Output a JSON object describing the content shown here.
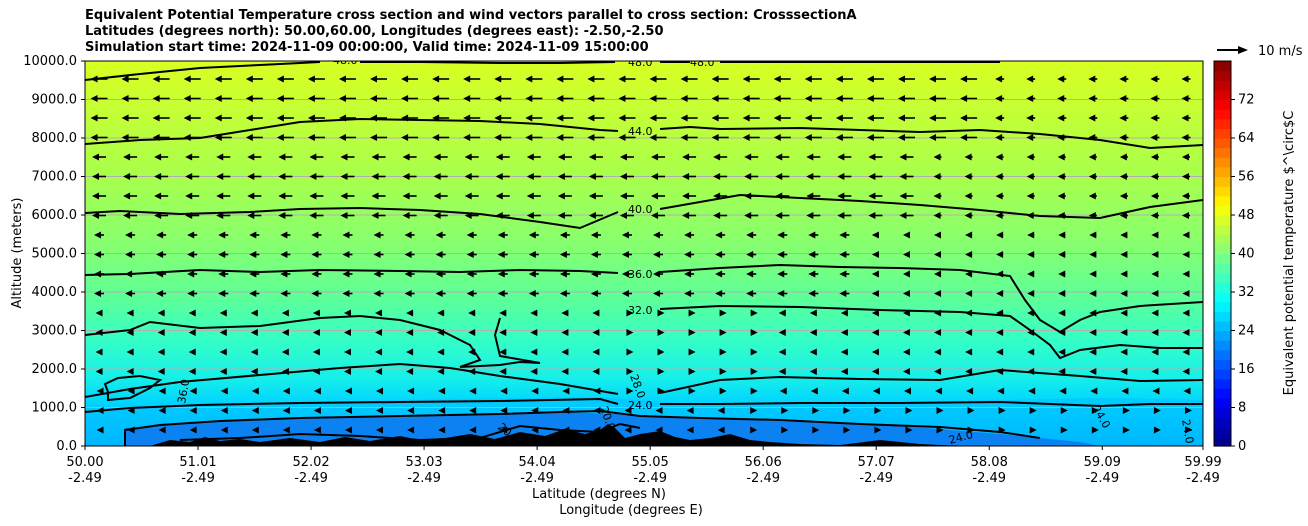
{
  "title_lines": [
    "Equivalent Potential Temperature cross section and wind vectors parallel to cross section: CrosssectionA",
    "Latitudes (degrees north): 50.00,60.00, Longitudes (degrees east): -2.50,-2.50",
    "Simulation start time: 2024-11-09 00:00:00, Valid time: 2024-11-09 15:00:00"
  ],
  "chart_data": {
    "type": "heatmap",
    "ylabel": "Altitude (meters)",
    "xlabel_lines": [
      "Latitude (degrees N)",
      "Longitude (degrees E)"
    ],
    "ylim": [
      0,
      10000
    ],
    "y_ticks": [
      0,
      1000,
      2000,
      3000,
      4000,
      5000,
      6000,
      7000,
      8000,
      9000,
      10000
    ],
    "y_tick_labels": [
      "0.0",
      "1000.0",
      "2000.0",
      "3000.0",
      "4000.0",
      "5000.0",
      "6000.0",
      "7000.0",
      "8000.0",
      "9000.0",
      "10000.0"
    ],
    "x_ticks_lat": [
      "50.00",
      "51.01",
      "52.02",
      "53.03",
      "54.04",
      "55.05",
      "56.06",
      "57.07",
      "58.08",
      "59.09",
      "59.99"
    ],
    "x_ticks_lon": [
      "-2.49",
      "-2.49",
      "-2.49",
      "-2.49",
      "-2.49",
      "-2.49",
      "-2.49",
      "-2.49",
      "-2.49",
      "-2.49",
      "-2.49"
    ],
    "xlim": [
      50.0,
      59.99
    ],
    "grid": "horizontal",
    "colorbar": {
      "label": "Equivalent potential temperature $^\\circ$C",
      "range": [
        0,
        80
      ],
      "ticks": [
        0,
        8,
        16,
        24,
        32,
        40,
        48,
        56,
        64,
        72
      ],
      "tick_labels": [
        "0",
        "8",
        "16",
        "24",
        "32",
        "40",
        "48",
        "56",
        "64",
        "72"
      ]
    },
    "wind_key_label": "10 m/s",
    "wind_direction": "toward south (leftward arrows) in upper levels, weak mixed near surface",
    "contours": [
      {
        "level": 48.0,
        "label": "48.0",
        "approx_altitude_m": 9900
      },
      {
        "level": 44.0,
        "label": "44.0",
        "approx_altitude_m": 8000
      },
      {
        "level": 40.0,
        "label": "40.0",
        "approx_altitude_m": 6100
      },
      {
        "level": 36.0,
        "label": "36.0",
        "approx_altitude_m": 4500
      },
      {
        "level": 32.0,
        "label": "32.0",
        "approx_altitude_m": 3500
      },
      {
        "level": 28.0,
        "label": "28.0",
        "approx_altitude_m": 1500
      },
      {
        "level": 24.0,
        "label": "24.0",
        "approx_altitude_m": 1000
      },
      {
        "level": 20.0,
        "label": "20.0",
        "approx_altitude_m": 100
      }
    ],
    "field_colors": {
      "top": "#d8ff22",
      "upper": "#a8ff4c",
      "mid": "#7cff7a",
      "lower": "#36ffc4",
      "low": "#10e8ff",
      "surface": "#00a8ff",
      "ground": "#000000"
    }
  }
}
